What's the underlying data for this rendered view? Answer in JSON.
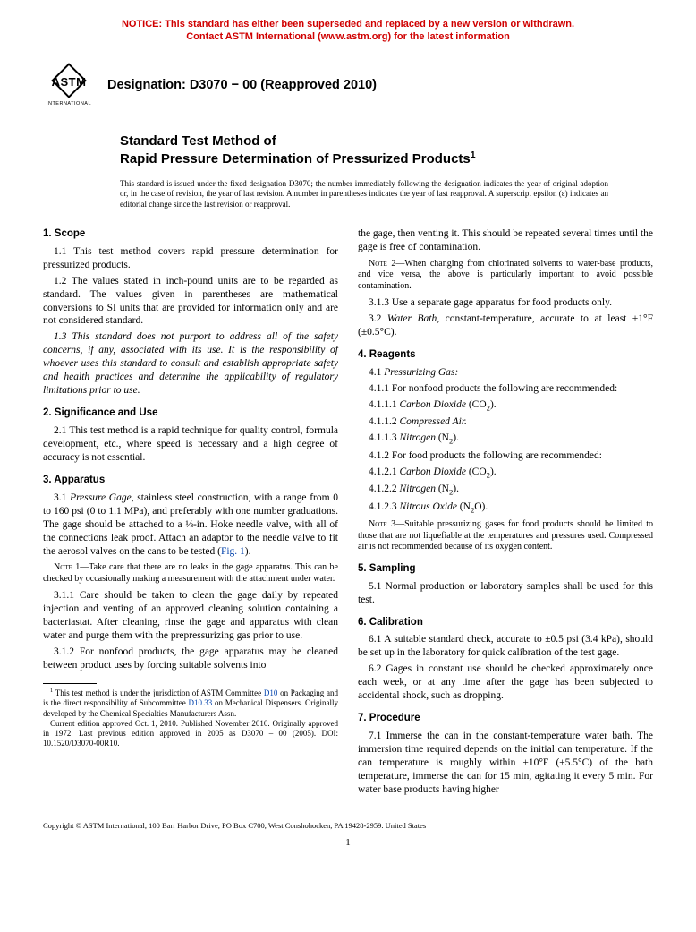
{
  "notice": {
    "line1": "NOTICE: This standard has either been superseded and replaced by a new version or withdrawn.",
    "line2": "Contact ASTM International (www.astm.org) for the latest information"
  },
  "logo": {
    "text": "ASTM",
    "subtitle": "INTERNATIONAL"
  },
  "designation": "Designation: D3070 − 00 (Reapproved 2010)",
  "title": {
    "pre": "Standard Test Method of",
    "main": "Rapid Pressure Determination of Pressurized Products",
    "sup": "1"
  },
  "issuance": "This standard is issued under the fixed designation D3070; the number immediately following the designation indicates the year of original adoption or, in the case of revision, the year of last revision. A number in parentheses indicates the year of last reapproval. A superscript epsilon (ε) indicates an editorial change since the last revision or reapproval.",
  "s1": {
    "head": "1. Scope",
    "p1": "1.1 This test method covers rapid pressure determination for pressurized products.",
    "p2": "1.2 The values stated in inch-pound units are to be regarded as standard. The values given in parentheses are mathematical conversions to SI units that are provided for information only and are not considered standard.",
    "p3": "1.3 This standard does not purport to address all of the safety concerns, if any, associated with its use. It is the responsibility of whoever uses this standard to consult and establish appropriate safety and health practices and determine the applicability of regulatory limitations prior to use."
  },
  "s2": {
    "head": "2. Significance and Use",
    "p1": "2.1 This test method is a rapid technique for quality control, formula development, etc., where speed is necessary and a high degree of accuracy is not essential."
  },
  "s3": {
    "head": "3. Apparatus",
    "p1a": "3.1 ",
    "p1term": "Pressure Gage,",
    "p1b": " stainless steel construction, with a range from 0 to 160 psi (0 to 1.1 MPa), and preferably with one number graduations. The gage should be attached to a ⅛-in. Hoke needle valve, with all of the connections leak proof. Attach an adaptor to the needle valve to fit the aerosol valves on the cans to be tested (",
    "p1link": "Fig. 1",
    "p1c": ").",
    "note1label": "Note",
    "note1": " 1—Take care that there are no leaks in the gage apparatus. This can be checked by occasionally making a measurement with the attachment under water.",
    "p311": "3.1.1 Care should be taken to clean the gage daily by repeated injection and venting of an approved cleaning solution containing a bacteriastat. After cleaning, rinse the gage and apparatus with clean water and purge them with the prepressurizing gas prior to use.",
    "p312": "3.1.2 For nonfood products, the gage apparatus may be cleaned between product uses by forcing suitable solvents into",
    "p312cont": "the gage, then venting it. This should be repeated several times until the gage is free of contamination.",
    "note2label": "Note",
    "note2": " 2—When changing from chlorinated solvents to water-base products, and vice versa, the above is particularly important to avoid possible contamination.",
    "p313": "3.1.3 Use a separate gage apparatus for food products only.",
    "p32a": "3.2 ",
    "p32term": "Water Bath,",
    "p32b": " constant-temperature, accurate to at least ±1°F (±0.5°C)."
  },
  "s4": {
    "head": "4. Reagents",
    "p41a": "4.1 ",
    "p41term": "Pressurizing Gas:",
    "p411": "4.1.1 For nonfood products the following are recommended:",
    "p4111a": "4.1.1.1 ",
    "p4111term": "Carbon Dioxide",
    "p4111b": " (CO",
    "p4111sub": "2",
    "p4111c": ").",
    "p4112a": "4.1.1.2 ",
    "p4112term": "Compressed Air.",
    "p4113a": "4.1.1.3 ",
    "p4113term": "Nitrogen",
    "p4113b": " (N",
    "p4113sub": "2",
    "p4113c": ").",
    "p412": "4.1.2 For food products the following are recommended:",
    "p4121a": "4.1.2.1 ",
    "p4121term": "Carbon Dioxide",
    "p4121b": " (CO",
    "p4121sub": "2",
    "p4121c": ").",
    "p4122a": "4.1.2.2 ",
    "p4122term": "Nitrogen",
    "p4122b": " (N",
    "p4122sub": "2",
    "p4122c": ").",
    "p4123a": "4.1.2.3 ",
    "p4123term": "Nitrous Oxide",
    "p4123b": " (N",
    "p4123sub": "2",
    "p4123c": "O).",
    "note3label": "Note",
    "note3": " 3—Suitable pressurizing gases for food products should be limited to those that are not liquefiable at the temperatures and pressures used. Compressed air is not recommended because of its oxygen content."
  },
  "s5": {
    "head": "5. Sampling",
    "p1": "5.1 Normal production or laboratory samples shall be used for this test."
  },
  "s6": {
    "head": "6. Calibration",
    "p1": "6.1 A suitable standard check, accurate to ±0.5 psi (3.4 kPa), should be set up in the laboratory for quick calibration of the test gage.",
    "p2": "6.2 Gages in constant use should be checked approximately once each week, or at any time after the gage has been subjected to accidental shock, such as dropping."
  },
  "s7": {
    "head": "7. Procedure",
    "p1": "7.1 Immerse the can in the constant-temperature water bath. The immersion time required depends on the initial can temperature. If the can temperature is roughly within ±10°F (±5.5°C) of the bath temperature, immerse the can for 15 min, agitating it every 5 min. For water base products having higher"
  },
  "footnote": {
    "sup": "1",
    "a": " This test method is under the jurisdiction of ASTM Committee ",
    "link1": "D10",
    "b": " on Packaging and is the direct responsibility of Subcommittee ",
    "link2": "D10.33",
    "c": " on Mechanical Dispensers. Originally developed by the Chemical Specialties Manufacturers Assn.",
    "d": "Current edition approved Oct. 1, 2010. Published November 2010. Originally approved in 1972. Last previous edition approved in 2005 as D3070 – 00 (2005). DOI: 10.1520/D3070-00R10."
  },
  "copyright": "Copyright © ASTM International, 100 Barr Harbor Drive, PO Box C700, West Conshohocken, PA 19428-2959. United States",
  "pagenum": "1"
}
